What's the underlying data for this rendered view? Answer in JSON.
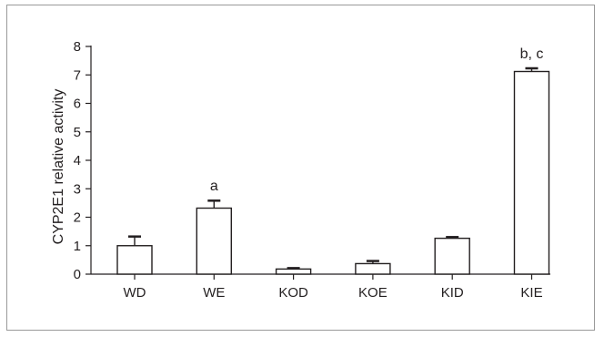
{
  "chart_data": {
    "type": "bar",
    "categories": [
      "WD",
      "WE",
      "KOD",
      "KOE",
      "KID",
      "KIE"
    ],
    "values": [
      1.0,
      2.32,
      0.18,
      0.37,
      1.26,
      7.12
    ],
    "errors": [
      0.33,
      0.27,
      0.04,
      0.1,
      0.05,
      0.12
    ],
    "annotations": [
      "",
      "a",
      "",
      "",
      "",
      "b, c"
    ],
    "title": "",
    "xlabel": "",
    "ylabel": "CYP2E1 relative activity",
    "ylim": [
      0,
      8
    ],
    "yticks": [
      0,
      1,
      2,
      3,
      4,
      5,
      6,
      7,
      8
    ],
    "grid": false,
    "colors": {
      "bar_fill": "#ffffff",
      "bar_stroke": "#231f20"
    }
  }
}
